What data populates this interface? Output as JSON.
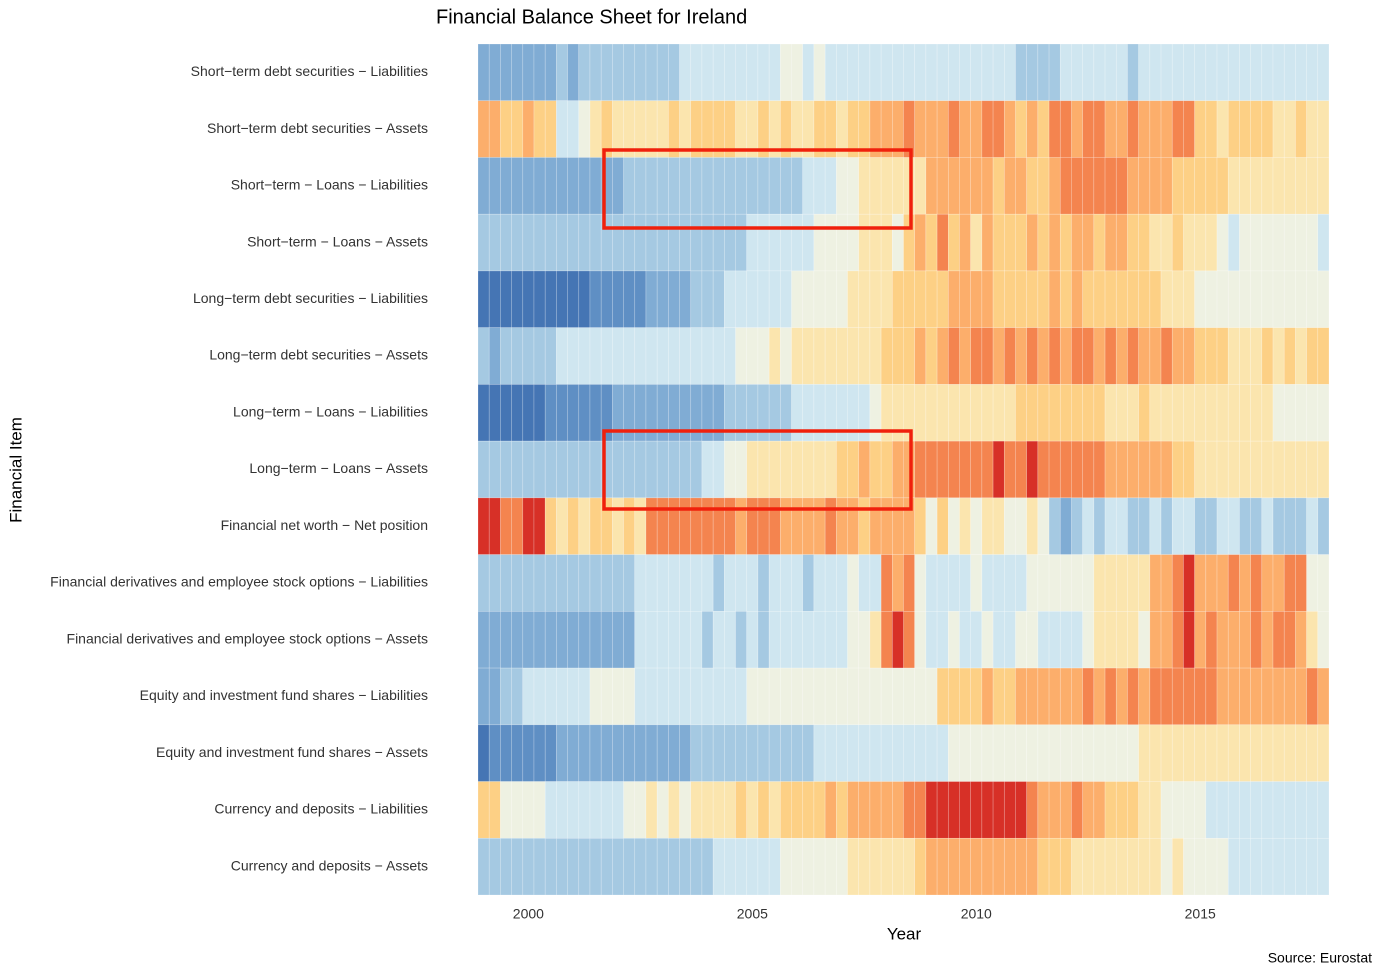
{
  "chart_data": {
    "type": "heatmap",
    "title": "Financial Balance Sheet for Ireland",
    "xlabel": "Year",
    "ylabel": "Financial Item",
    "source": "Source: Eurostat",
    "xlim": [
      1998.875,
      2017.875
    ],
    "xticks": [
      2000,
      2005,
      2010,
      2015
    ],
    "zlim": [
      -5,
      5
    ],
    "colorscale": [
      "#4575b4",
      "#5f8fc4",
      "#80acd4",
      "#a5c9e2",
      "#cfe6f0",
      "#eef1e2",
      "#fbe5ae",
      "#fdd085",
      "#fcae6b",
      "#f4844f",
      "#d73027"
    ],
    "x": [
      1999,
      1999.25,
      1999.5,
      1999.75,
      2000,
      2000.25,
      2000.5,
      2000.75,
      2001,
      2001.25,
      2001.5,
      2001.75,
      2002,
      2002.25,
      2002.5,
      2002.75,
      2003,
      2003.25,
      2003.5,
      2003.75,
      2004,
      2004.25,
      2004.5,
      2004.75,
      2005,
      2005.25,
      2005.5,
      2005.75,
      2006,
      2006.25,
      2006.5,
      2006.75,
      2007,
      2007.25,
      2007.5,
      2007.75,
      2008,
      2008.25,
      2008.5,
      2008.75,
      2009,
      2009.25,
      2009.5,
      2009.75,
      2010,
      2010.25,
      2010.5,
      2010.75,
      2011,
      2011.25,
      2011.5,
      2011.75,
      2012,
      2012.25,
      2012.5,
      2012.75,
      2013,
      2013.25,
      2013.5,
      2013.75,
      2014,
      2014.25,
      2014.5,
      2014.75,
      2015,
      2015.25,
      2015.5,
      2015.75,
      2016,
      2016.25,
      2016.5,
      2016.75,
      2017,
      2017.25,
      2017.5,
      2017.75
    ],
    "series": [
      {
        "name": "Short−term debt securities − Liabilities",
        "values": [
          -3,
          -3,
          -3,
          -3,
          -3,
          -3,
          -3,
          -2,
          -3,
          -2,
          -2,
          -2,
          -2,
          -2,
          -2,
          -2,
          -2,
          -2,
          -1,
          -1,
          -1,
          -1,
          -1,
          -1,
          -1,
          -1,
          -1,
          0,
          0,
          -1,
          0,
          -1,
          -1,
          -1,
          -1,
          -1,
          -1,
          -1,
          -1,
          -1,
          -1,
          -1,
          -1,
          -1,
          -1,
          -1,
          -1,
          -1,
          -2,
          -2,
          -2,
          -2,
          -1,
          -1,
          -1,
          -1,
          -1,
          -1,
          -2,
          -1,
          -1,
          -1,
          -1,
          -1,
          -1,
          -1,
          -1,
          -1,
          -1,
          -1,
          -1,
          -1,
          -1,
          -1,
          -1,
          -1
        ]
      },
      {
        "name": "Short−term debt securities − Assets",
        "values": [
          3,
          3,
          2,
          2,
          3,
          2,
          2,
          -1,
          -1,
          0,
          1,
          2,
          1,
          1,
          1,
          1,
          1,
          2,
          1,
          2,
          2,
          2,
          2,
          1,
          1,
          2,
          1,
          2,
          1,
          1,
          2,
          2,
          1,
          2,
          2,
          3,
          3,
          3,
          4,
          3,
          3,
          3,
          4,
          3,
          3,
          4,
          4,
          3,
          2,
          3,
          2,
          4,
          4,
          3,
          4,
          4,
          3,
          3,
          4,
          3,
          3,
          3,
          4,
          4,
          2,
          2,
          1,
          2,
          2,
          2,
          2,
          1,
          1,
          2,
          1,
          1
        ]
      },
      {
        "name": "Short−term − Loans − Liabilities",
        "values": [
          -3,
          -3,
          -3,
          -3,
          -3,
          -3,
          -3,
          -3,
          -3,
          -3,
          -3,
          -3,
          -3,
          -2,
          -2,
          -2,
          -2,
          -2,
          -2,
          -2,
          -2,
          -2,
          -2,
          -2,
          -2,
          -2,
          -2,
          -2,
          -2,
          -1,
          -1,
          -1,
          0,
          0,
          1,
          1,
          1,
          1,
          1,
          1,
          3,
          3,
          3,
          3,
          3,
          3,
          2,
          3,
          3,
          2,
          2,
          3,
          4,
          4,
          4,
          4,
          4,
          4,
          3,
          3,
          3,
          3,
          2,
          2,
          2,
          2,
          2,
          1,
          1,
          1,
          1,
          1,
          1,
          1,
          1,
          1
        ]
      },
      {
        "name": "Short−term − Loans − Assets",
        "values": [
          -2,
          -2,
          -2,
          -2,
          -2,
          -2,
          -2,
          -2,
          -2,
          -2,
          -2,
          -2,
          -2,
          -2,
          -2,
          -2,
          -2,
          -2,
          -2,
          -2,
          -2,
          -2,
          -2,
          -2,
          -1,
          -1,
          -1,
          -1,
          -1,
          -1,
          0,
          0,
          0,
          0,
          1,
          1,
          1,
          0,
          2,
          3,
          2,
          4,
          2,
          3,
          1,
          3,
          2,
          2,
          2,
          3,
          2,
          3,
          2,
          3,
          3,
          2,
          3,
          3,
          2,
          2,
          1,
          1,
          2,
          1,
          1,
          1,
          0,
          -1,
          0,
          0,
          0,
          0,
          0,
          0,
          0,
          -1
        ]
      },
      {
        "name": "Long−term debt securities − Liabilities",
        "values": [
          -5,
          -5,
          -5,
          -5,
          -5,
          -5,
          -5,
          -5,
          -5,
          -5,
          -4,
          -4,
          -4,
          -4,
          -4,
          -3,
          -3,
          -3,
          -3,
          -2,
          -2,
          -2,
          -1,
          -1,
          -1,
          -1,
          -1,
          -1,
          0,
          0,
          0,
          0,
          0,
          1,
          1,
          1,
          1,
          2,
          2,
          2,
          2,
          2,
          3,
          3,
          3,
          3,
          2,
          2,
          2,
          2,
          2,
          3,
          2,
          3,
          2,
          2,
          2,
          2,
          2,
          2,
          2,
          1,
          1,
          1,
          0,
          0,
          0,
          0,
          0,
          0,
          0,
          0,
          0,
          0,
          0,
          0
        ]
      },
      {
        "name": "Long−term debt securities − Assets",
        "values": [
          -2,
          -3,
          -2,
          -2,
          -2,
          -2,
          -2,
          -1,
          -1,
          -1,
          -1,
          -1,
          -1,
          -1,
          -1,
          -1,
          -1,
          -1,
          -1,
          -1,
          -1,
          -1,
          -1,
          0,
          0,
          0,
          1,
          0,
          1,
          1,
          1,
          1,
          1,
          1,
          1,
          1,
          2,
          2,
          2,
          3,
          2,
          3,
          4,
          3,
          4,
          4,
          3,
          4,
          3,
          4,
          3,
          4,
          3,
          4,
          4,
          3,
          4,
          3,
          4,
          3,
          3,
          4,
          3,
          3,
          2,
          2,
          2,
          1,
          1,
          1,
          2,
          1,
          2,
          1,
          2,
          2
        ]
      },
      {
        "name": "Long−term − Loans − Liabilities",
        "values": [
          -5,
          -5,
          -5,
          -5,
          -5,
          -5,
          -4,
          -4,
          -4,
          -4,
          -4,
          -4,
          -3,
          -3,
          -3,
          -3,
          -3,
          -3,
          -3,
          -3,
          -3,
          -3,
          -2,
          -2,
          -2,
          -2,
          -2,
          -2,
          -1,
          -1,
          -1,
          -1,
          -1,
          -1,
          -1,
          0,
          1,
          1,
          1,
          1,
          1,
          1,
          1,
          1,
          1,
          1,
          1,
          1,
          2,
          2,
          2,
          2,
          2,
          2,
          2,
          2,
          1,
          1,
          1,
          2,
          1,
          1,
          1,
          1,
          1,
          1,
          1,
          1,
          1,
          1,
          1,
          0,
          0,
          0,
          0,
          0
        ]
      },
      {
        "name": "Long−term − Loans − Assets",
        "values": [
          -2,
          -2,
          -2,
          -2,
          -2,
          -2,
          -2,
          -2,
          -2,
          -2,
          -2,
          -2,
          -2,
          -2,
          -2,
          -2,
          -2,
          -2,
          -2,
          -2,
          -1,
          -1,
          0,
          0,
          1,
          1,
          1,
          1,
          1,
          1,
          1,
          1,
          2,
          2,
          3,
          2,
          2,
          3,
          3,
          4,
          4,
          4,
          4,
          4,
          4,
          4,
          5,
          4,
          4,
          5,
          4,
          4,
          4,
          4,
          4,
          4,
          3,
          3,
          3,
          3,
          3,
          3,
          2,
          2,
          1,
          1,
          1,
          1,
          1,
          1,
          1,
          1,
          1,
          1,
          1,
          1
        ]
      },
      {
        "name": "Financial net worth − Net position",
        "values": [
          5,
          5,
          4,
          4,
          5,
          5,
          2,
          1,
          2,
          1,
          2,
          2,
          1,
          2,
          1,
          4,
          4,
          4,
          4,
          4,
          4,
          4,
          4,
          3,
          4,
          4,
          4,
          3,
          3,
          3,
          3,
          4,
          3,
          3,
          2,
          3,
          3,
          3,
          3,
          2,
          0,
          2,
          0,
          1,
          0,
          1,
          1,
          0,
          0,
          1,
          0,
          -2,
          -3,
          -2,
          -1,
          -2,
          -1,
          -1,
          -2,
          -2,
          -1,
          -2,
          -1,
          -1,
          -2,
          -2,
          -1,
          -1,
          -2,
          -2,
          -1,
          -2,
          -2,
          -2,
          -1,
          -2
        ]
      },
      {
        "name": "Financial derivatives and employee stock options − Liabilities",
        "values": [
          -2,
          -2,
          -2,
          -2,
          -2,
          -2,
          -2,
          -2,
          -2,
          -2,
          -2,
          -2,
          -2,
          -2,
          -1,
          -1,
          -1,
          -1,
          -1,
          -1,
          -1,
          -2,
          -1,
          -1,
          -1,
          -2,
          -1,
          -1,
          -1,
          -2,
          -1,
          -1,
          -1,
          0,
          -1,
          -1,
          4,
          3,
          4,
          0,
          -1,
          -1,
          -1,
          -1,
          0,
          -1,
          -1,
          -1,
          -1,
          0,
          0,
          0,
          0,
          0,
          0,
          1,
          1,
          1,
          1,
          1,
          3,
          3,
          4,
          5,
          3,
          3,
          3,
          4,
          3,
          4,
          3,
          3,
          4,
          4,
          0,
          0
        ]
      },
      {
        "name": "Financial derivatives and employee stock options − Assets",
        "values": [
          -3,
          -3,
          -3,
          -3,
          -3,
          -3,
          -3,
          -3,
          -3,
          -3,
          -3,
          -3,
          -3,
          -3,
          -1,
          -1,
          -1,
          -1,
          -1,
          -1,
          -2,
          -1,
          -1,
          -2,
          -1,
          -2,
          -1,
          -1,
          -1,
          -1,
          -1,
          -1,
          -1,
          0,
          0,
          1,
          4,
          5,
          4,
          0,
          -1,
          -1,
          0,
          -1,
          -1,
          0,
          -1,
          -1,
          0,
          0,
          -1,
          -1,
          -1,
          -1,
          0,
          1,
          1,
          1,
          1,
          0,
          3,
          3,
          4,
          5,
          3,
          4,
          3,
          3,
          3,
          4,
          3,
          4,
          4,
          3,
          1,
          0
        ]
      },
      {
        "name": "Equity and investment fund shares − Liabilities",
        "values": [
          -3,
          -3,
          -2,
          -2,
          -1,
          -1,
          -1,
          -1,
          -1,
          -1,
          0,
          0,
          0,
          0,
          -1,
          -1,
          -1,
          -1,
          -1,
          -1,
          -1,
          -1,
          -1,
          -1,
          0,
          0,
          0,
          0,
          0,
          0,
          0,
          0,
          0,
          0,
          0,
          0,
          0,
          0,
          0,
          0,
          0,
          2,
          2,
          2,
          2,
          3,
          2,
          2,
          3,
          3,
          3,
          3,
          3,
          3,
          4,
          3,
          4,
          3,
          4,
          3,
          4,
          4,
          4,
          4,
          4,
          4,
          3,
          3,
          3,
          3,
          3,
          3,
          3,
          3,
          4,
          3
        ]
      },
      {
        "name": "Equity and investment fund shares − Assets",
        "values": [
          -5,
          -4,
          -4,
          -4,
          -4,
          -4,
          -4,
          -3,
          -3,
          -3,
          -3,
          -3,
          -3,
          -3,
          -3,
          -3,
          -3,
          -3,
          -3,
          -2,
          -2,
          -2,
          -2,
          -2,
          -2,
          -2,
          -2,
          -2,
          -2,
          -2,
          -1,
          -1,
          -1,
          -1,
          -1,
          -1,
          -1,
          -1,
          -1,
          -1,
          -1,
          -1,
          0,
          0,
          0,
          0,
          0,
          0,
          0,
          0,
          0,
          0,
          0,
          0,
          0,
          0,
          0,
          0,
          0,
          1,
          1,
          1,
          1,
          1,
          1,
          1,
          1,
          1,
          1,
          1,
          1,
          1,
          1,
          1,
          1,
          1
        ]
      },
      {
        "name": "Currency and deposits − Liabilities",
        "values": [
          2,
          2,
          0,
          0,
          0,
          0,
          -1,
          -1,
          -1,
          -1,
          -1,
          -1,
          -1,
          0,
          0,
          1,
          0,
          1,
          0,
          1,
          1,
          1,
          1,
          2,
          1,
          2,
          1,
          2,
          2,
          2,
          2,
          3,
          2,
          3,
          3,
          3,
          3,
          3,
          4,
          4,
          5,
          5,
          5,
          5,
          5,
          5,
          5,
          5,
          5,
          4,
          3,
          3,
          3,
          4,
          3,
          3,
          2,
          2,
          2,
          1,
          1,
          0,
          0,
          0,
          0,
          -1,
          -1,
          -1,
          -1,
          -1,
          -1,
          -1,
          -1,
          -1,
          -1,
          -1
        ]
      },
      {
        "name": "Currency and deposits − Assets",
        "values": [
          -2,
          -2,
          -2,
          -2,
          -2,
          -2,
          -2,
          -2,
          -2,
          -2,
          -2,
          -2,
          -2,
          -2,
          -2,
          -2,
          -2,
          -2,
          -2,
          -2,
          -2,
          -1,
          -1,
          -1,
          -1,
          -1,
          -1,
          0,
          0,
          0,
          0,
          0,
          0,
          1,
          1,
          1,
          1,
          1,
          1,
          2,
          3,
          3,
          3,
          3,
          3,
          3,
          3,
          3,
          3,
          3,
          2,
          2,
          2,
          1,
          1,
          1,
          1,
          1,
          1,
          1,
          1,
          0,
          1,
          0,
          0,
          0,
          0,
          -1,
          -1,
          -1,
          -1,
          -1,
          -1,
          -1,
          -1,
          -1
        ]
      }
    ]
  }
}
